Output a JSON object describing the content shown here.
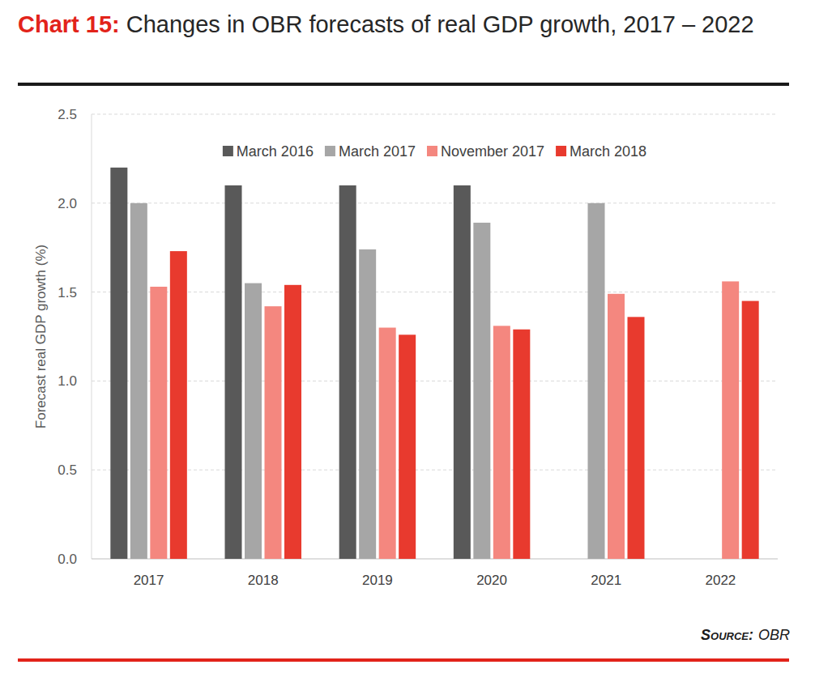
{
  "chart_data": {
    "type": "bar",
    "title_label": "Chart 15:",
    "title": "Changes in OBR forecasts of real GDP growth, 2017 – 2022",
    "y_label": "Forecast real GDP growth (%)",
    "source_label": "Source:",
    "source": "OBR",
    "categories": [
      "2017",
      "2018",
      "2019",
      "2020",
      "2021",
      "2022"
    ],
    "series": [
      {
        "name": "March 2016",
        "color": "#595959",
        "values": [
          2.2,
          2.1,
          2.1,
          2.1,
          null,
          null
        ]
      },
      {
        "name": "March 2017",
        "color": "#a6a6a6",
        "values": [
          2.0,
          1.55,
          1.74,
          1.89,
          2.0,
          null
        ]
      },
      {
        "name": "November 2017",
        "color": "#f4877f",
        "values": [
          1.53,
          1.42,
          1.3,
          1.31,
          1.49,
          1.56
        ]
      },
      {
        "name": "March 2018",
        "color": "#e83a2e",
        "values": [
          1.73,
          1.54,
          1.26,
          1.29,
          1.36,
          1.45
        ]
      }
    ],
    "ylim": [
      0,
      2.5
    ],
    "yticks": [
      {
        "value": 0,
        "label": "0.0"
      },
      0.5,
      {
        "value": 1,
        "label": "1.0"
      },
      1.5,
      {
        "value": 2,
        "label": "2.0"
      },
      2.5
    ],
    "grid": true,
    "legend": "top"
  }
}
